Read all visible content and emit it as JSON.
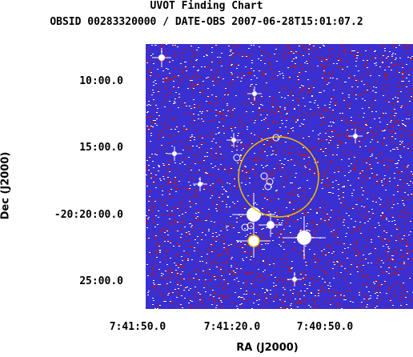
{
  "chart_data": {
    "type": "image",
    "title": "UVOT Finding Chart",
    "subtitle": "OBSID 00283320000 / DATE-OBS 2007-06-28T15:01:07.2",
    "xlabel": "RA (J2000)",
    "ylabel": "Dec (J2000)",
    "xticks": [
      "7:41:50.0",
      "7:41:20.0",
      "7:40:50.0"
    ],
    "yticks": [
      "10:00.0",
      "15:00.0",
      "-20:20:00.0",
      "25:00.0"
    ],
    "colors": {
      "background": "#3a2fd0",
      "noise_red": "#b0182a",
      "noise_white": "#ffffff",
      "error_circle": "#f0c000",
      "source_markers": "#ffffff"
    }
  }
}
